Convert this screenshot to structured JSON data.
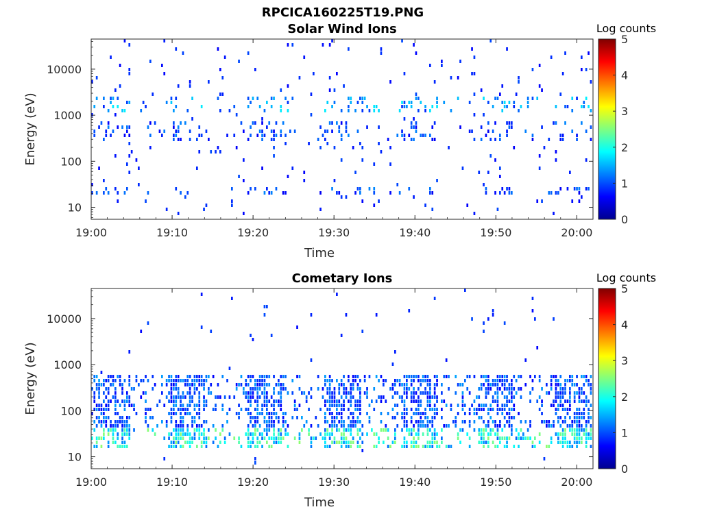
{
  "figure_title": "RPCICA160225T19.PNG",
  "chart_data": [
    {
      "type": "heatmap",
      "title": "Solar Wind Ions",
      "xlabel": "Time",
      "ylabel": "Energy (eV)",
      "x_scale": "time",
      "y_scale": "log",
      "xlim": [
        "19:00",
        "20:02"
      ],
      "ylim": [
        5.5,
        45000
      ],
      "xticks": [
        "19:00",
        "19:10",
        "19:20",
        "19:30",
        "19:40",
        "19:50",
        "20:00"
      ],
      "yticks": [
        10,
        100,
        1000,
        10000
      ],
      "ytick_labels": [
        "10",
        "100",
        "1000",
        "10000"
      ],
      "colorbar": {
        "label": "Log counts",
        "range": [
          0,
          5
        ],
        "ticks": [
          "0",
          "1",
          "2",
          "3",
          "4",
          "5"
        ],
        "colormap": "jet"
      },
      "bands": [
        {
          "energy_range": [
            20,
            28
          ],
          "typical_log_counts": 1.0
        },
        {
          "energy_range": [
            250,
            700
          ],
          "typical_log_counts": 1.0
        },
        {
          "energy_range": [
            1200,
            2500
          ],
          "typical_log_counts": 1.4
        }
      ]
    },
    {
      "type": "heatmap",
      "title": "Cometary Ions",
      "xlabel": "Time",
      "ylabel": "Energy (eV)",
      "x_scale": "time",
      "y_scale": "log",
      "xlim": [
        "19:00",
        "20:02"
      ],
      "ylim": [
        5.5,
        45000
      ],
      "xticks": [
        "19:00",
        "19:10",
        "19:20",
        "19:30",
        "19:40",
        "19:50",
        "20:00"
      ],
      "yticks": [
        10,
        100,
        1000,
        10000
      ],
      "ytick_labels": [
        "10",
        "100",
        "1000",
        "10000"
      ],
      "colorbar": {
        "label": "Log counts",
        "range": [
          0,
          5
        ],
        "ticks": [
          "0",
          "1",
          "2",
          "3",
          "4",
          "5"
        ],
        "colormap": "jet"
      },
      "bands": [
        {
          "energy_range": [
            14,
            40
          ],
          "typical_log_counts": 2.0
        },
        {
          "energy_range": [
            40,
            600
          ],
          "typical_log_counts": 1.1
        }
      ]
    }
  ]
}
